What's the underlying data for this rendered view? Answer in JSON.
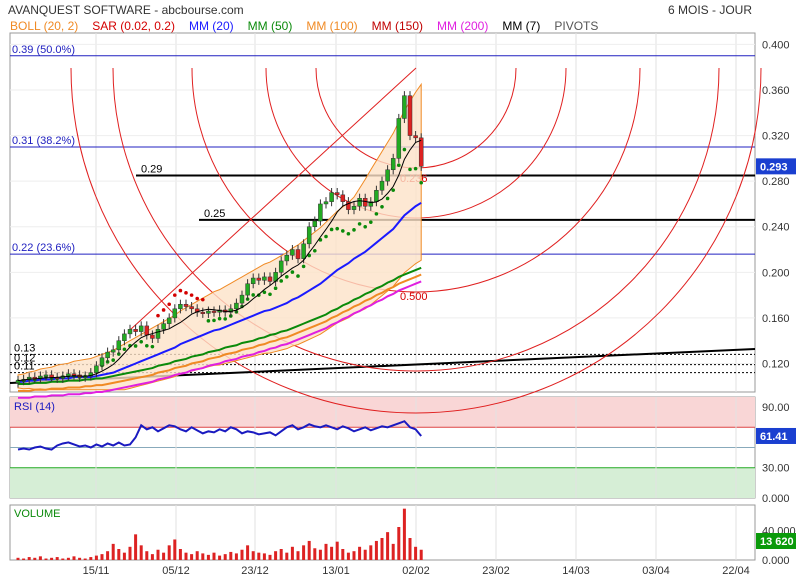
{
  "header": {
    "title": "AVANQUEST SOFTWARE - abcbourse.com",
    "period": "6 MOIS - JOUR"
  },
  "legend": [
    {
      "label": "BOLL (20, 2)",
      "color": "#f08a24"
    },
    {
      "label": "SAR (0.02, 0.2)",
      "color": "#d40000"
    },
    {
      "label": "MM (20)",
      "color": "#1a1aff"
    },
    {
      "label": "MM (50)",
      "color": "#0a8a0a"
    },
    {
      "label": "MM (100)",
      "color": "#f08a24"
    },
    {
      "label": "MM (150)",
      "color": "#c00000"
    },
    {
      "label": "MM (200)",
      "color": "#e020e0"
    },
    {
      "label": "MM (7)",
      "color": "#000000"
    },
    {
      "label": "PIVOTS",
      "color": "#555555"
    }
  ],
  "chart_data": [
    {
      "type": "candlestick",
      "title": "AVANQUEST SOFTWARE",
      "ylim": [
        0.095,
        0.41
      ],
      "y_ticks": [
        "0.400",
        "0.360",
        "0.320",
        "0.280",
        "0.240",
        "0.200",
        "0.160",
        "0.120"
      ],
      "x_ticks": [
        "15/11",
        "05/12",
        "23/12",
        "13/01",
        "02/02",
        "23/02",
        "14/03",
        "03/04",
        "22/04"
      ],
      "last_value": "0.293",
      "fib_levels": [
        {
          "label": "0.39  (50.0%)",
          "value": 0.39
        },
        {
          "label": "0.31  (38.2%)",
          "value": 0.31
        },
        {
          "label": "0.22  (23.6%)",
          "value": 0.216
        }
      ],
      "pivots": [
        {
          "label": "0.29",
          "value": 0.285
        },
        {
          "label": "0.25",
          "value": 0.246
        },
        {
          "label": "0.13",
          "value": 0.128
        },
        {
          "label": "0.12",
          "value": 0.119
        },
        {
          "label": "0.11",
          "value": 0.112
        }
      ],
      "arc_labels": [
        "0.236",
        "0.500"
      ],
      "closes": [
        0.105,
        0.106,
        0.108,
        0.107,
        0.109,
        0.11,
        0.108,
        0.107,
        0.109,
        0.111,
        0.11,
        0.108,
        0.109,
        0.112,
        0.118,
        0.125,
        0.13,
        0.132,
        0.14,
        0.146,
        0.15,
        0.148,
        0.153,
        0.145,
        0.142,
        0.15,
        0.155,
        0.16,
        0.168,
        0.172,
        0.17,
        0.168,
        0.165,
        0.164,
        0.166,
        0.165,
        0.167,
        0.165,
        0.168,
        0.173,
        0.18,
        0.19,
        0.195,
        0.193,
        0.196,
        0.192,
        0.2,
        0.21,
        0.215,
        0.22,
        0.212,
        0.225,
        0.24,
        0.245,
        0.26,
        0.262,
        0.27,
        0.268,
        0.262,
        0.255,
        0.258,
        0.265,
        0.258,
        0.262,
        0.272,
        0.28,
        0.29,
        0.3,
        0.335,
        0.355,
        0.32,
        0.318,
        0.293
      ],
      "sma20": [
        0.104,
        0.104,
        0.105,
        0.105,
        0.106,
        0.106,
        0.106,
        0.107,
        0.107,
        0.107,
        0.108,
        0.108,
        0.108,
        0.108,
        0.109,
        0.11,
        0.111,
        0.112,
        0.114,
        0.116,
        0.118,
        0.12,
        0.122,
        0.124,
        0.126,
        0.128,
        0.13,
        0.132,
        0.134,
        0.137,
        0.139,
        0.141,
        0.143,
        0.145,
        0.147,
        0.149,
        0.15,
        0.152,
        0.154,
        0.156,
        0.158,
        0.16,
        0.162,
        0.164,
        0.166,
        0.167,
        0.169,
        0.171,
        0.173,
        0.176,
        0.178,
        0.181,
        0.184,
        0.187,
        0.19,
        0.194,
        0.198,
        0.202,
        0.205,
        0.208,
        0.212,
        0.215,
        0.218,
        0.222,
        0.226,
        0.23,
        0.234,
        0.238,
        0.244,
        0.25,
        0.254,
        0.258,
        0.261
      ],
      "sma50": [
        0.102,
        0.102,
        0.102,
        0.103,
        0.103,
        0.103,
        0.104,
        0.104,
        0.104,
        0.105,
        0.105,
        0.105,
        0.106,
        0.106,
        0.107,
        0.107,
        0.108,
        0.109,
        0.11,
        0.111,
        0.112,
        0.113,
        0.114,
        0.115,
        0.116,
        0.118,
        0.119,
        0.12,
        0.122,
        0.123,
        0.124,
        0.126,
        0.127,
        0.128,
        0.13,
        0.131,
        0.132,
        0.134,
        0.135,
        0.136,
        0.138,
        0.139,
        0.14,
        0.142,
        0.143,
        0.145,
        0.146,
        0.148,
        0.149,
        0.151,
        0.153,
        0.155,
        0.157,
        0.159,
        0.161,
        0.163,
        0.166,
        0.168,
        0.171,
        0.173,
        0.176,
        0.178,
        0.181,
        0.183,
        0.186,
        0.188,
        0.191,
        0.193,
        0.196,
        0.198,
        0.2,
        0.202,
        0.204
      ],
      "rsi": [
        48,
        49,
        48,
        50,
        51,
        49,
        48,
        52,
        54,
        55,
        53,
        51,
        52,
        50,
        53,
        51,
        54,
        52,
        55,
        52,
        53,
        60,
        72,
        68,
        70,
        66,
        69,
        72,
        71,
        68,
        66,
        70,
        67,
        64,
        66,
        65,
        68,
        66,
        70,
        68,
        64,
        66,
        65,
        63,
        64,
        65,
        62,
        66,
        70,
        72,
        68,
        70,
        73,
        71,
        70,
        72,
        70,
        68,
        71,
        69,
        66,
        68,
        70,
        67,
        69,
        71,
        70,
        72,
        74,
        76,
        70,
        68,
        61.41
      ],
      "rsi_label": "RSI (14)",
      "rsi_ticks": [
        "90.00",
        "60.00",
        "30.00",
        "0.000"
      ],
      "rsi_last": "61.41",
      "volume_label": "VOLUME",
      "volume_ticks": [
        "40 000",
        "0.000"
      ],
      "volume_last": "13 620",
      "volumes": [
        3,
        2,
        4,
        3,
        5,
        2,
        3,
        4,
        2,
        3,
        5,
        3,
        2,
        4,
        6,
        8,
        12,
        22,
        15,
        10,
        18,
        35,
        20,
        12,
        8,
        14,
        10,
        20,
        28,
        15,
        10,
        8,
        12,
        9,
        7,
        10,
        6,
        8,
        11,
        9,
        14,
        20,
        12,
        10,
        9,
        7,
        12,
        15,
        10,
        18,
        12,
        20,
        26,
        16,
        14,
        22,
        18,
        25,
        15,
        10,
        12,
        18,
        14,
        20,
        26,
        30,
        38,
        22,
        45,
        70,
        30,
        18,
        14
      ]
    }
  ]
}
